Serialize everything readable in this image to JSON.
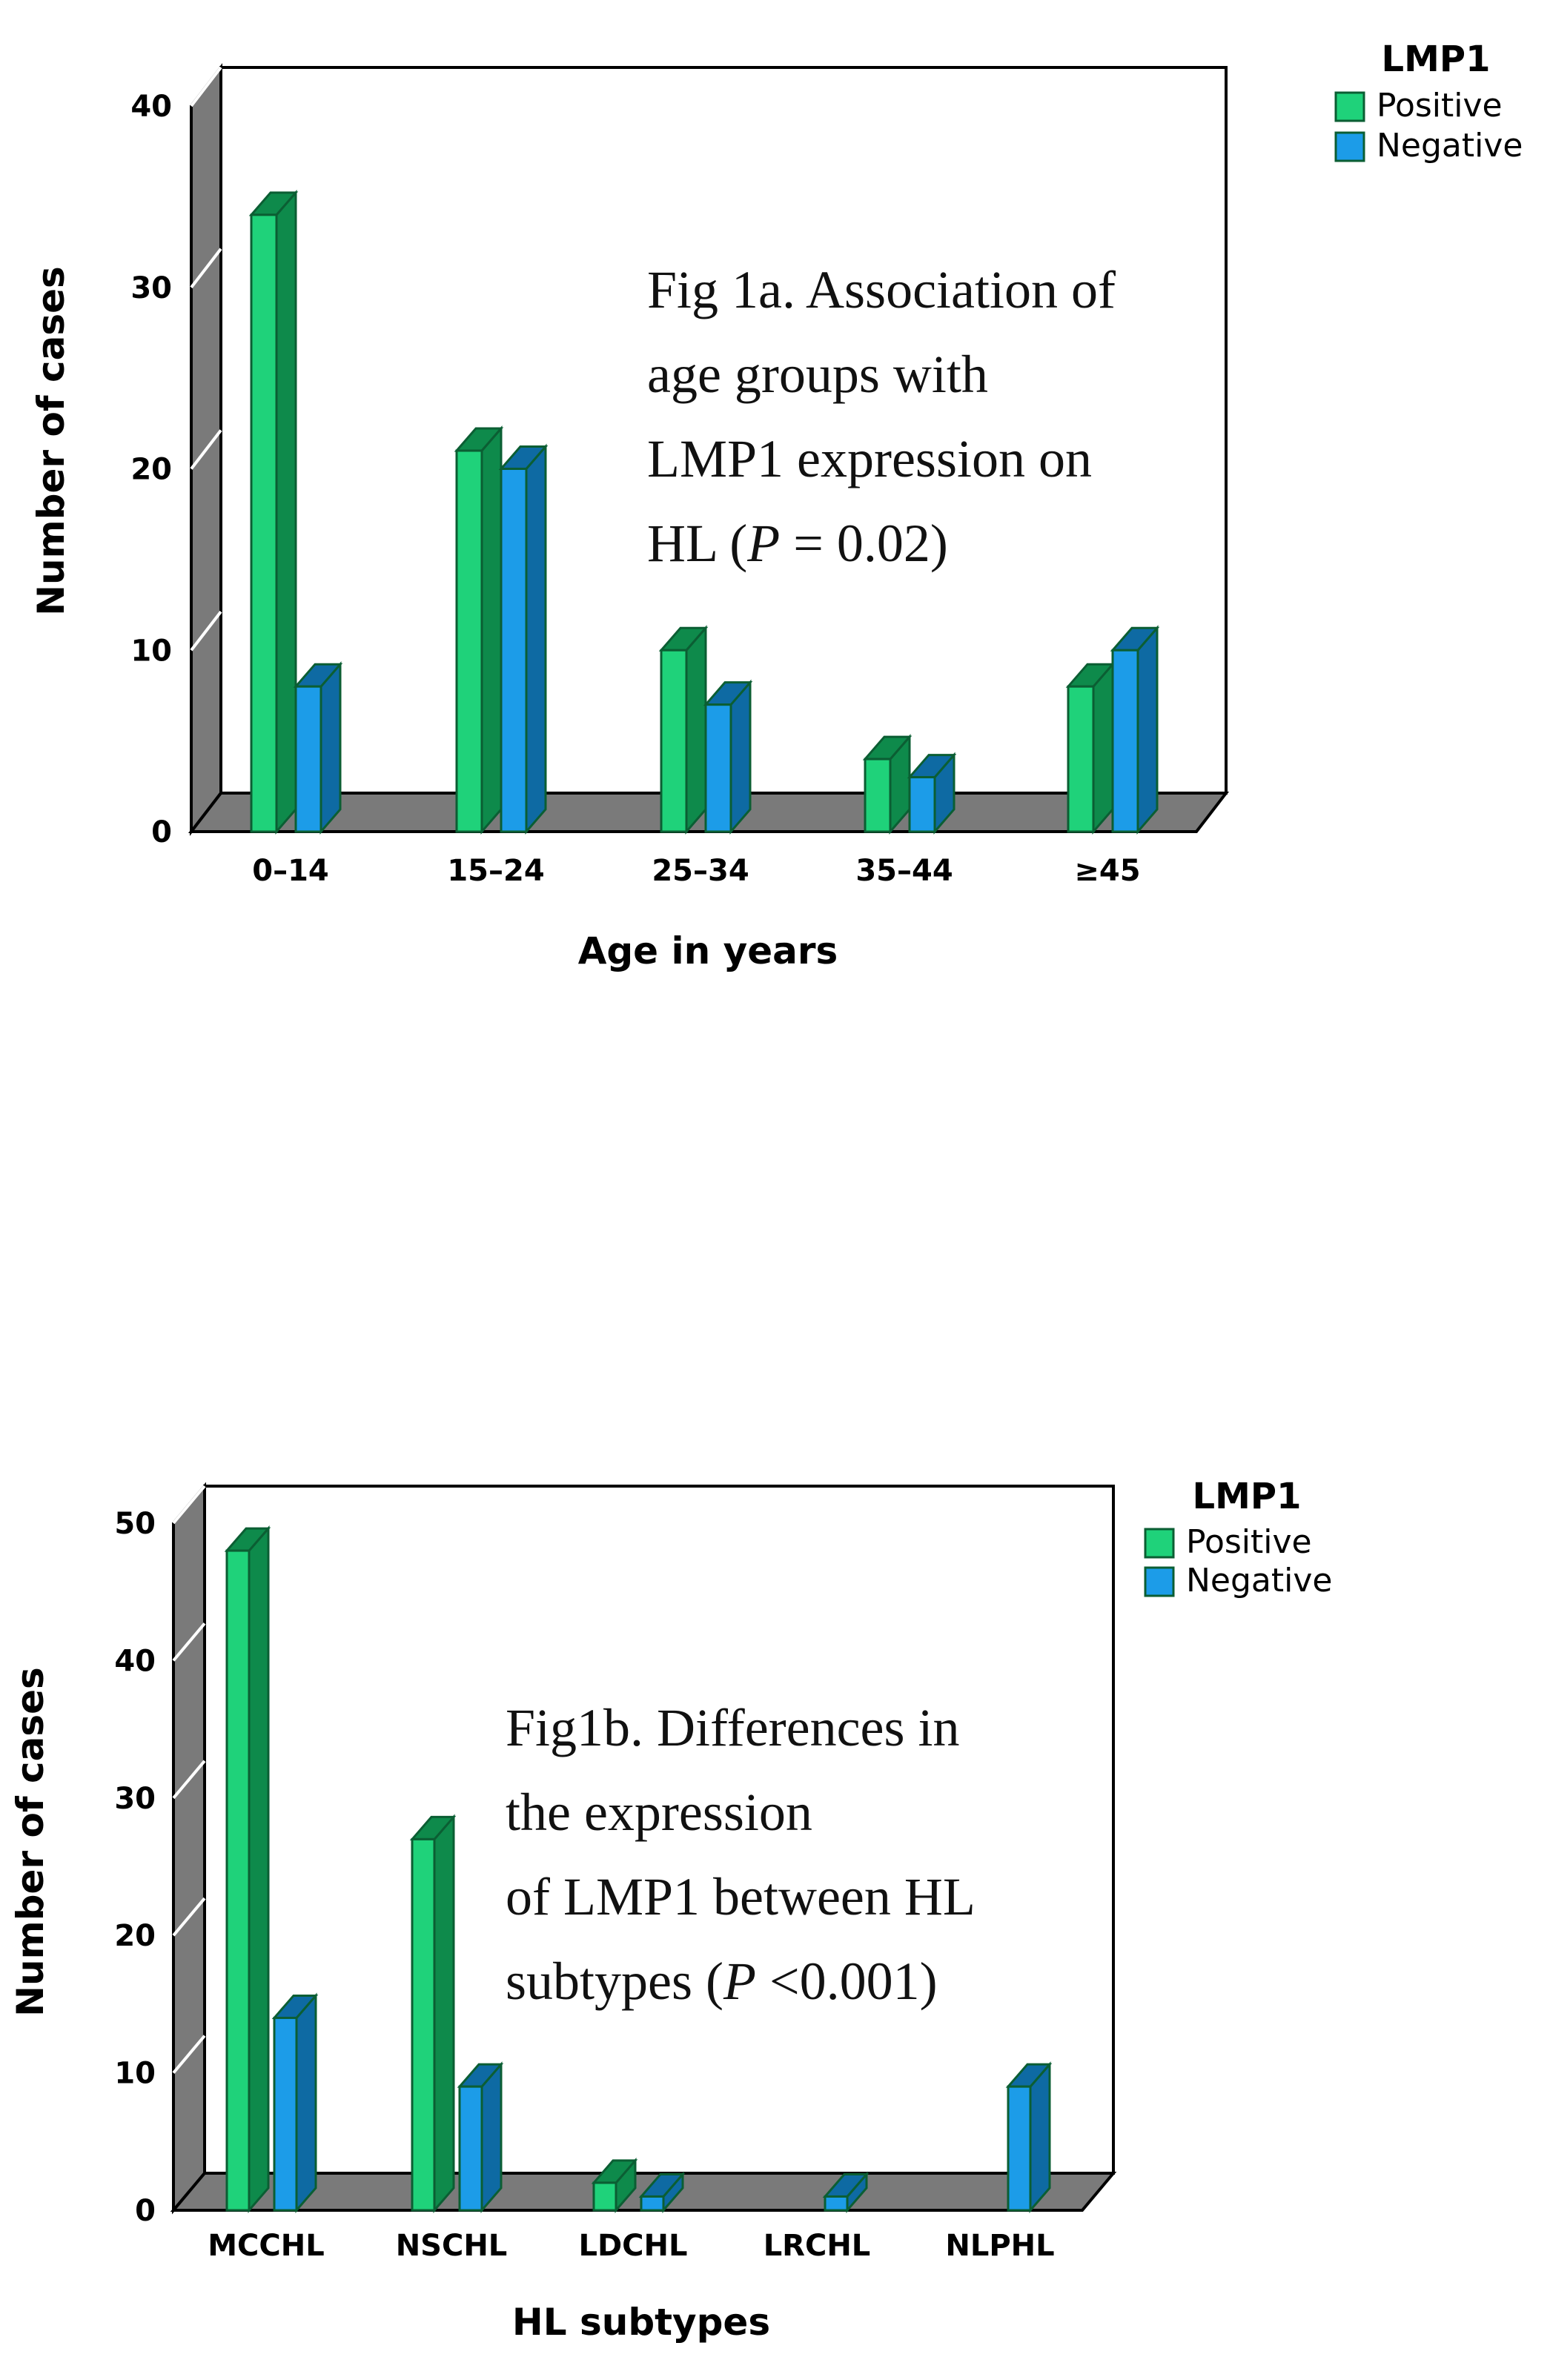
{
  "chart_data": [
    {
      "type": "bar",
      "style": "3d-clustered",
      "xlabel": "Age in years",
      "ylabel": "Number of cases",
      "categories": [
        "0–14",
        "15–24",
        "25–34",
        "35–44",
        "≥45"
      ],
      "yticks": [
        "0",
        "10",
        "20",
        "30",
        "40"
      ],
      "ylim": [
        0,
        40
      ],
      "series": [
        {
          "name": "Positive",
          "values": [
            34,
            21,
            10,
            4,
            8
          ],
          "color": "#1fd27a",
          "side_color": "#0e8a4b"
        },
        {
          "name": "Negative",
          "values": [
            8,
            20,
            7,
            3,
            10
          ],
          "color": "#1c9ce8",
          "side_color": "#0e6aa3"
        }
      ],
      "legend": {
        "title": "LMP1",
        "placement": "top-right"
      },
      "annotation": {
        "lines": [
          "Fig 1a. Association of",
          "age      groups      with",
          "LMP1 expression on",
          "HL (P = 0.02)"
        ]
      },
      "grid": false
    },
    {
      "type": "bar",
      "style": "3d-clustered",
      "xlabel": "HL subtypes",
      "ylabel": "Number of cases",
      "categories": [
        "MCCHL",
        "NSCHL",
        "LDCHL",
        "LRCHL",
        "NLPHL"
      ],
      "yticks": [
        "0",
        "10",
        "20",
        "30",
        "40",
        "50"
      ],
      "ylim": [
        0,
        50
      ],
      "series": [
        {
          "name": "Positive",
          "values": [
            48,
            27,
            2,
            0,
            0
          ],
          "color": "#1fd27a",
          "side_color": "#0e8a4b"
        },
        {
          "name": "Negative",
          "values": [
            14,
            9,
            1,
            1,
            9
          ],
          "color": "#1c9ce8",
          "side_color": "#0e6aa3"
        }
      ],
      "legend": {
        "title": "LMP1",
        "placement": "top-right"
      },
      "annotation": {
        "lines": [
          "Fig1b.  Differences  in",
          "the expression",
          "of LMP1 between HL",
          "subtypes (P <0.001)"
        ]
      },
      "grid": false
    }
  ]
}
